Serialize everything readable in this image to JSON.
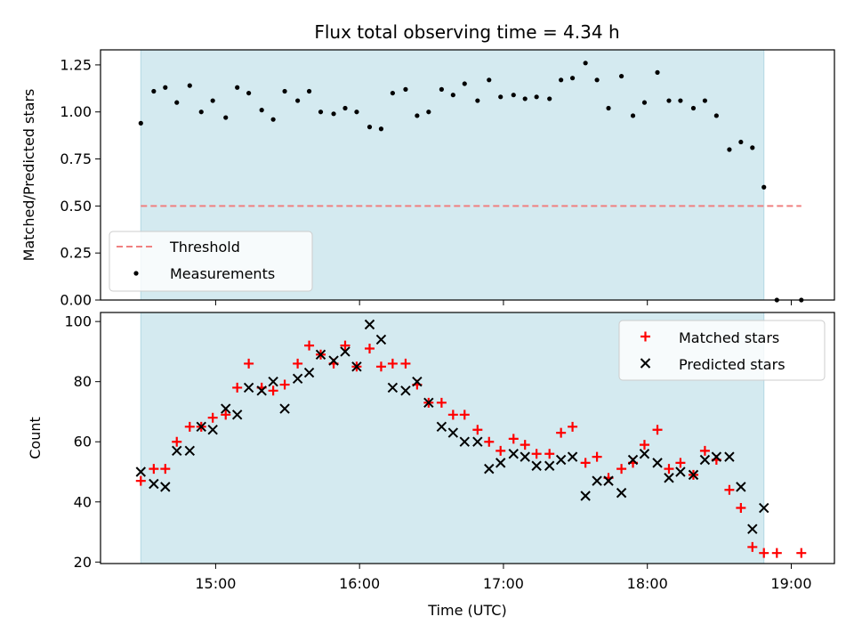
{
  "title": "Flux total observing time = 4.34 h",
  "xlabel": "Time (UTC)",
  "x_ticks": [
    {
      "value": 15.0,
      "label": "15:00"
    },
    {
      "value": 16.0,
      "label": "16:00"
    },
    {
      "value": 17.0,
      "label": "17:00"
    },
    {
      "value": 18.0,
      "label": "18:00"
    },
    {
      "value": 19.0,
      "label": "19:00"
    }
  ],
  "chart_data": [
    {
      "type": "scatter",
      "ylabel": "Matched/Predicted stars",
      "xlim": [
        14.2,
        19.3
      ],
      "ylim": [
        0,
        1.33
      ],
      "y_ticks": [
        {
          "value": 0.0,
          "label": "0.00"
        },
        {
          "value": 0.25,
          "label": "0.25"
        },
        {
          "value": 0.5,
          "label": "0.50"
        },
        {
          "value": 0.75,
          "label": "0.75"
        },
        {
          "value": 1.0,
          "label": "1.00"
        },
        {
          "value": 1.25,
          "label": "1.25"
        }
      ],
      "observing_window": [
        14.48,
        18.81
      ],
      "threshold": {
        "name": "Threshold",
        "y": 0.5,
        "x": [
          14.48,
          19.07
        ],
        "color": "#f08080"
      },
      "legend": [
        "Threshold",
        "Measurements"
      ],
      "series": [
        {
          "name": "Measurements",
          "color": "#000000",
          "x": [
            14.48,
            14.57,
            14.65,
            14.73,
            14.82,
            14.9,
            14.98,
            15.07,
            15.15,
            15.23,
            15.32,
            15.4,
            15.48,
            15.57,
            15.65,
            15.73,
            15.82,
            15.9,
            15.98,
            16.07,
            16.15,
            16.23,
            16.32,
            16.4,
            16.48,
            16.57,
            16.65,
            16.73,
            16.82,
            16.9,
            16.98,
            17.07,
            17.15,
            17.23,
            17.32,
            17.4,
            17.48,
            17.57,
            17.65,
            17.73,
            17.82,
            17.9,
            17.98,
            18.07,
            18.15,
            18.23,
            18.32,
            18.4,
            18.48,
            18.57,
            18.65,
            18.73,
            18.81,
            18.9,
            19.07
          ],
          "y": [
            0.94,
            1.11,
            1.13,
            1.05,
            1.14,
            1.0,
            1.06,
            0.97,
            1.13,
            1.1,
            1.01,
            0.96,
            1.11,
            1.06,
            1.11,
            1.0,
            0.99,
            1.02,
            1.0,
            0.92,
            0.91,
            1.1,
            1.12,
            0.98,
            1.0,
            1.12,
            1.09,
            1.15,
            1.06,
            1.17,
            1.08,
            1.09,
            1.07,
            1.08,
            1.07,
            1.17,
            1.18,
            1.26,
            1.17,
            1.02,
            1.19,
            0.98,
            1.05,
            1.21,
            1.06,
            1.06,
            1.02,
            1.06,
            0.98,
            0.8,
            0.84,
            0.81,
            0.6,
            0.0,
            0.0
          ]
        }
      ]
    },
    {
      "type": "scatter",
      "ylabel": "Count",
      "xlim": [
        14.2,
        19.3
      ],
      "ylim": [
        19.5,
        103
      ],
      "y_ticks": [
        {
          "value": 20,
          "label": "20"
        },
        {
          "value": 40,
          "label": "40"
        },
        {
          "value": 60,
          "label": "60"
        },
        {
          "value": 80,
          "label": "80"
        },
        {
          "value": 100,
          "label": "100"
        }
      ],
      "observing_window": [
        14.48,
        18.81
      ],
      "legend": [
        "Matched stars",
        "Predicted stars"
      ],
      "series": [
        {
          "name": "Matched stars",
          "marker": "plus",
          "color": "#ff0000",
          "x": [
            14.48,
            14.57,
            14.65,
            14.73,
            14.82,
            14.9,
            14.98,
            15.07,
            15.15,
            15.23,
            15.32,
            15.4,
            15.48,
            15.57,
            15.65,
            15.73,
            15.82,
            15.9,
            15.98,
            16.07,
            16.15,
            16.23,
            16.32,
            16.4,
            16.48,
            16.57,
            16.65,
            16.73,
            16.82,
            16.9,
            16.98,
            17.07,
            17.15,
            17.23,
            17.32,
            17.4,
            17.48,
            17.57,
            17.65,
            17.73,
            17.82,
            17.9,
            17.98,
            18.07,
            18.15,
            18.23,
            18.32,
            18.4,
            18.48,
            18.57,
            18.65,
            18.73,
            18.81,
            18.9,
            19.07
          ],
          "y": [
            47,
            51,
            51,
            60,
            65,
            65,
            68,
            69,
            78,
            86,
            78,
            77,
            79,
            86,
            92,
            89,
            86,
            92,
            85,
            91,
            85,
            86,
            86,
            79,
            73,
            73,
            69,
            69,
            64,
            60,
            57,
            61,
            59,
            56,
            56,
            63,
            65,
            53,
            55,
            48,
            51,
            53,
            59,
            64,
            51,
            53,
            49,
            57,
            54,
            44,
            38,
            25,
            23,
            23,
            23
          ]
        },
        {
          "name": "Predicted stars",
          "marker": "x",
          "color": "#000000",
          "x": [
            14.48,
            14.57,
            14.65,
            14.73,
            14.82,
            14.9,
            14.98,
            15.07,
            15.15,
            15.23,
            15.32,
            15.4,
            15.48,
            15.57,
            15.65,
            15.73,
            15.82,
            15.9,
            15.98,
            16.07,
            16.15,
            16.23,
            16.32,
            16.4,
            16.48,
            16.57,
            16.65,
            16.73,
            16.82,
            16.9,
            16.98,
            17.07,
            17.15,
            17.23,
            17.32,
            17.4,
            17.48,
            17.57,
            17.65,
            17.73,
            17.82,
            17.9,
            17.98,
            18.07,
            18.15,
            18.23,
            18.32,
            18.4,
            18.48,
            18.57,
            18.65,
            18.73,
            18.81
          ],
          "y": [
            50,
            46,
            45,
            57,
            57,
            65,
            64,
            71,
            69,
            78,
            77,
            80,
            71,
            81,
            83,
            89,
            87,
            90,
            85,
            99,
            94,
            78,
            77,
            80,
            73,
            65,
            63,
            60,
            60,
            51,
            53,
            56,
            55,
            52,
            52,
            54,
            55,
            42,
            47,
            47,
            43,
            54,
            56,
            53,
            48,
            50,
            49,
            54,
            55,
            55,
            45,
            31,
            38
          ]
        }
      ]
    }
  ],
  "colors": {
    "span": "#d4eaf0",
    "span_edge": "#b3d8e3"
  }
}
